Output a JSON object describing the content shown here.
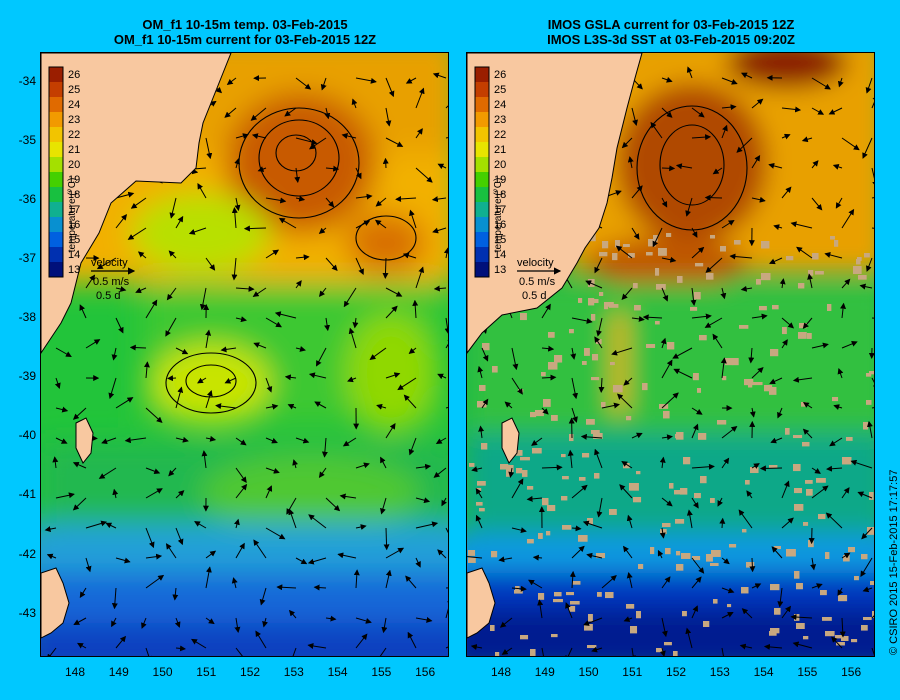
{
  "panels": [
    {
      "id": "left",
      "title_line1": "OM_f1 10-15m temp. 03-Feb-2015",
      "title_line2": "OM_f1 10-15m current for 03-Feb-2015 12Z",
      "colorbar_label": "temperature (°C)",
      "velocity_label": "velocity",
      "velocity_scale": "0.5 m/s",
      "velocity_time": "0.5 d"
    },
    {
      "id": "right",
      "title_line1": "IMOS GSLA current for 03-Feb-2015 12Z",
      "title_line2": "IMOS L3S-3d SST at 03-Feb-2015 09:20Z",
      "colorbar_label": "temperature (°C)",
      "velocity_label": "velocity",
      "velocity_scale": "0.5 m/s",
      "velocity_time": "0.5 d"
    }
  ],
  "colorbar": {
    "ticks": [
      "26",
      "25",
      "24",
      "23",
      "22",
      "21",
      "20",
      "19",
      "18",
      "17",
      "16",
      "15",
      "14",
      "13"
    ],
    "colors": [
      "#9a1e00",
      "#c43e00",
      "#e06a00",
      "#f29a00",
      "#f2c400",
      "#e8e400",
      "#a4e000",
      "#44d000",
      "#18c040",
      "#10b090",
      "#0890d0",
      "#0060e0",
      "#0030b0",
      "#00107a"
    ]
  },
  "axes": {
    "lat_ticks": [
      "-34",
      "-35",
      "-36",
      "-37",
      "-38",
      "-39",
      "-40",
      "-41",
      "-42",
      "-43"
    ],
    "lon_ticks": [
      "148",
      "149",
      "150",
      "151",
      "152",
      "153",
      "154",
      "155",
      "156"
    ],
    "lat_range": [
      -43.7,
      -33.5
    ],
    "lon_range": [
      147.2,
      156.5
    ]
  },
  "copyright": "© CSIRO 2015  15-Feb-2015 17:17:57",
  "colors": {
    "land": "#f8c8a0",
    "background": "#00c8ff"
  }
}
